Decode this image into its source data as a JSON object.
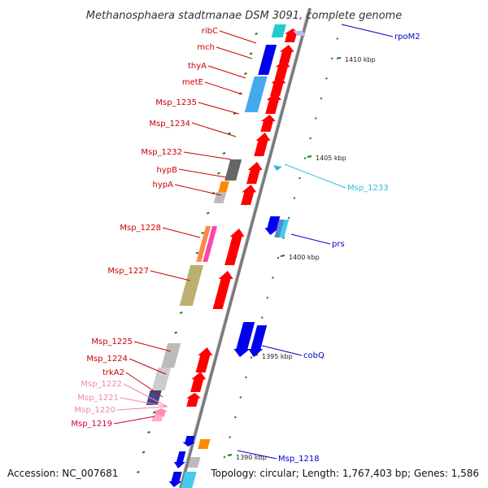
{
  "title": "Methanosphaera stadtmanae DSM 3091, complete genome",
  "accession": "Accession: NC_007681",
  "topology": "Topology: circular; Length: 1,767,403 bp; Genes: 1,586",
  "colors": {
    "backbone": "#888888",
    "forward_gene": "#ff0000",
    "reverse_gene": "#0000ee",
    "tick": "#1a7f1a",
    "label_red": "#cc0000",
    "label_blue": "#0000cc",
    "label_cyan": "#33bbdd",
    "label_pink": "#ee88aa",
    "label_dark_pink": "#cc0044"
  },
  "position_ticks": [
    "1410 kbp",
    "1405 kbp",
    "1400 kbp",
    "1395 kbp",
    "1390 kbp"
  ],
  "left_labels": [
    {
      "text": "ribC",
      "color": "#cc0000"
    },
    {
      "text": "mch",
      "color": "#cc0000"
    },
    {
      "text": "thyA",
      "color": "#cc0000"
    },
    {
      "text": "metE",
      "color": "#cc0000"
    },
    {
      "text": "Msp_1235",
      "color": "#cc0000"
    },
    {
      "text": "Msp_1234",
      "color": "#cc0000"
    },
    {
      "text": "Msp_1232",
      "color": "#cc0000"
    },
    {
      "text": "hypB",
      "color": "#cc0000"
    },
    {
      "text": "hypA",
      "color": "#cc0000"
    },
    {
      "text": "Msp_1228",
      "color": "#cc0000"
    },
    {
      "text": "Msp_1227",
      "color": "#cc0000"
    },
    {
      "text": "Msp_1225",
      "color": "#cc0000"
    },
    {
      "text": "Msp_1224",
      "color": "#cc0000"
    },
    {
      "text": "trkA2",
      "color": "#cc0000"
    },
    {
      "text": "Msp_1222",
      "color": "#ee88aa"
    },
    {
      "text": "Msp_1221",
      "color": "#ee88aa"
    },
    {
      "text": "Msp_1220",
      "color": "#ee88aa"
    },
    {
      "text": "Msp_1219",
      "color": "#cc0044"
    }
  ],
  "right_labels": [
    {
      "text": "rpoM2",
      "color": "#0000cc"
    },
    {
      "text": "Msp_1233",
      "color": "#33bbdd"
    },
    {
      "text": "prs",
      "color": "#0000cc"
    },
    {
      "text": "cobQ",
      "color": "#0000cc"
    },
    {
      "text": "Msp_1218",
      "color": "#0000cc"
    }
  ]
}
